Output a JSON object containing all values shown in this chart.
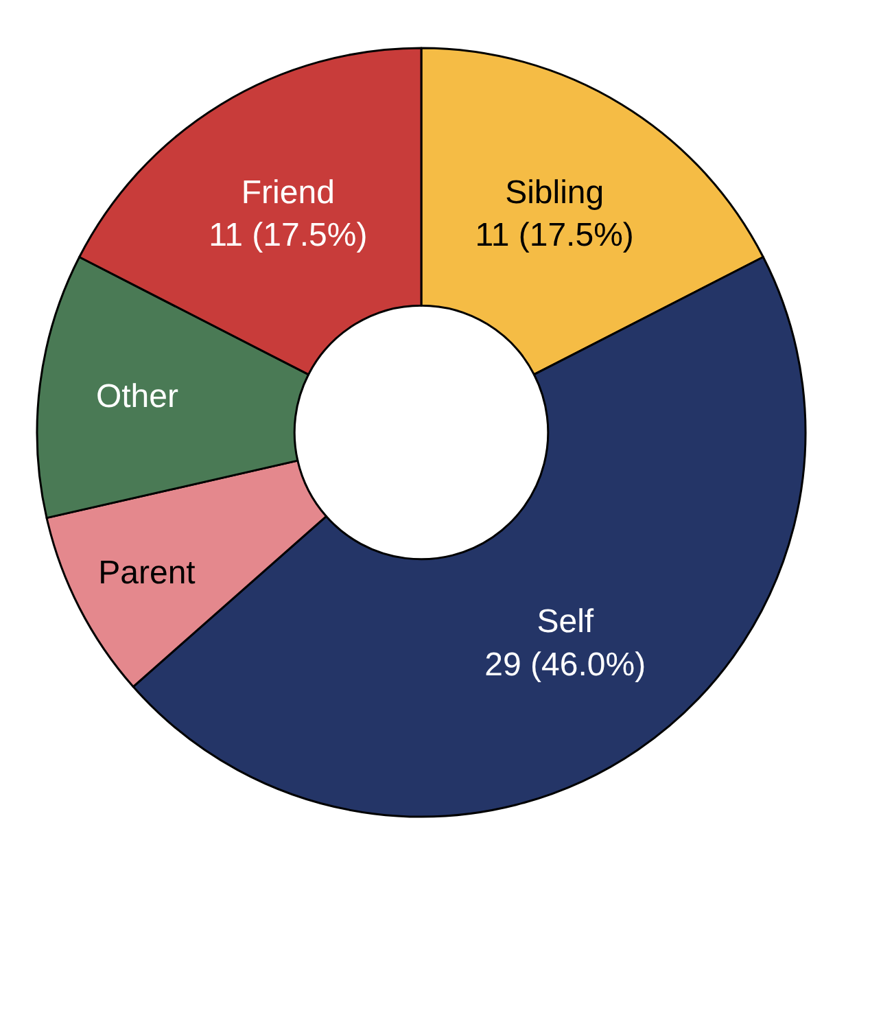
{
  "chart_data": {
    "type": "donut",
    "categories": [
      "Sibling",
      "Self",
      "Parent",
      "Other",
      "Friend"
    ],
    "values": [
      11,
      29,
      5,
      7,
      11
    ],
    "colors": [
      "#f5bc45",
      "#243567",
      "#e4888d",
      "#4a7a55",
      "#c83c3a"
    ],
    "value_labels": [
      "11 (17.5%)",
      "29 (46.0%)",
      null,
      null,
      "11 (17.5%)"
    ],
    "legend": false
  }
}
